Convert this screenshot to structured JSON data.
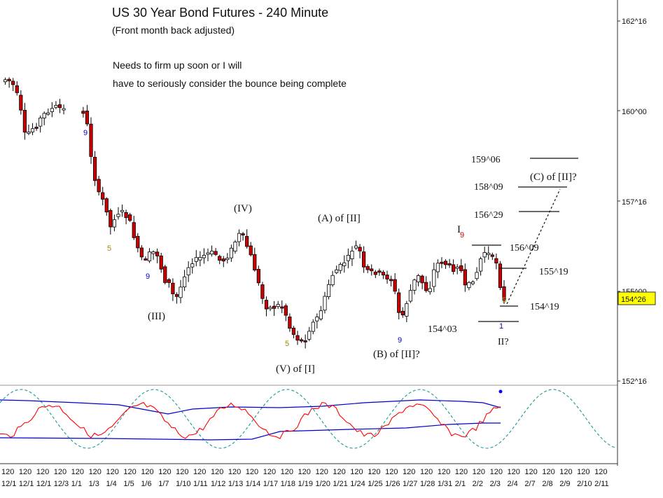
{
  "chart_data": {
    "type": "candlestick",
    "title": "US 30 Year Bond Futures - 240 Minute",
    "subtitle": "(Front month back adjusted)",
    "note": [
      "Needs to firm up soon or I will",
      "have to seriously consider the bounce being complete"
    ],
    "y_axis": {
      "ticks": [
        {
          "label": "162^16",
          "value": 162.5
        },
        {
          "label": "160^00",
          "value": 160.0
        },
        {
          "label": "157^16",
          "value": 157.5
        },
        {
          "label": "155^00",
          "value": 155.0
        },
        {
          "label": "152^16",
          "value": 152.5
        }
      ],
      "current_price_label": "154^26",
      "current_price": 154.8125
    },
    "x_axis": {
      "hour_label": "120",
      "date_labels": [
        "12/1",
        "12/1",
        "12/1",
        "12/3",
        "1/1",
        "1/3",
        "1/4",
        "1/5",
        "1/6",
        "1/7",
        "1/10",
        "1/11",
        "1/12",
        "1/13",
        "1/14",
        "1/17",
        "1/18",
        "1/19",
        "1/20",
        "1/21",
        "1/24",
        "1/25",
        "1/26",
        "1/27",
        "1/28",
        "1/31",
        "2/1",
        "2/2",
        "2/3",
        "2/4",
        "2/7",
        "2/8",
        "2/9",
        "2/10",
        "2/11"
      ]
    },
    "price_levels": [
      {
        "label": "159^06",
        "value": 159.1875
      },
      {
        "label": "158^09",
        "value": 158.28
      },
      {
        "label": "156^29",
        "value": 156.906
      },
      {
        "label": "156^09",
        "value": 156.28
      },
      {
        "label": "155^19",
        "value": 155.59
      },
      {
        "label": "154^19",
        "value": 154.59
      },
      {
        "label": "154^03",
        "value": 154.09
      }
    ],
    "wave_labels": [
      "(IV)",
      "(III)",
      "(V) of [I]",
      "(A) of [II]",
      "(B) of [II]?",
      "(C) of [II]?",
      "I",
      "II?"
    ],
    "count_marks": [
      "9",
      "5",
      "9",
      "5",
      "9",
      "9",
      "5",
      "1"
    ],
    "colors": {
      "up_candle": "#ffffff",
      "down_candle": "#cc0000",
      "oscillator_red": "#ff0000",
      "oscillator_blue": "#0000cc",
      "cycle_dashed": "#1a9a9a",
      "price_highlight": "#ffff00"
    }
  }
}
